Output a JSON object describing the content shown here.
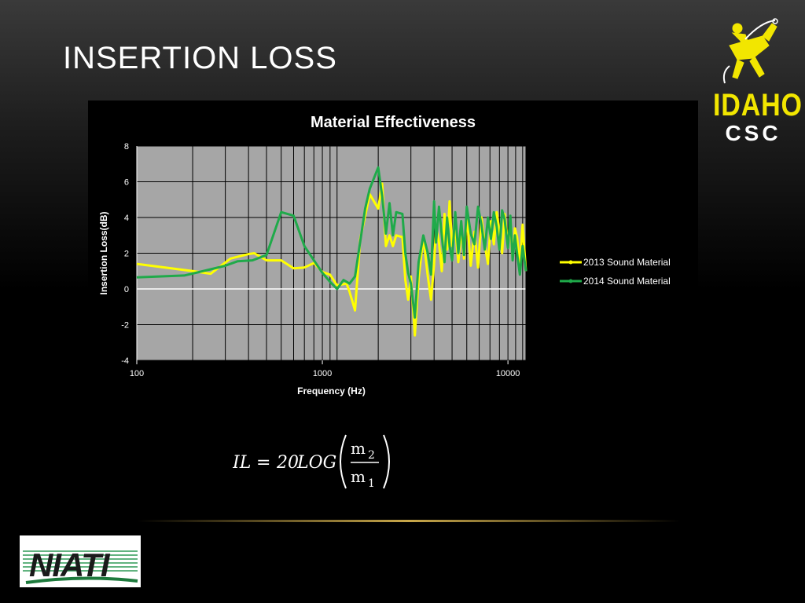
{
  "slide": {
    "title": "INSERTION LOSS"
  },
  "colors": {
    "series_2013": "#ffff00",
    "series_2014": "#1faa4a",
    "plot_bg": "#a6a6a6",
    "gold_rule": "#c9a84a"
  },
  "logos": {
    "idaho": {
      "word": "IDAHO",
      "sub": "CSC",
      "icon": "rodeo-rider-icon"
    },
    "niati": {
      "word": "NIATI"
    }
  },
  "formula": {
    "lhs": "IL",
    "equals": "=",
    "coef": "20",
    "func": "LOG",
    "num": "m",
    "num_sub": "2",
    "den": "m",
    "den_sub": "1"
  },
  "chart_data": {
    "type": "line",
    "title": "Material Effectiveness",
    "xlabel": "Frequency (Hz)",
    "ylabel": "Insertion Loss(dB)",
    "xscale": "log",
    "xlim": [
      100,
      12500
    ],
    "ylim": [
      -4,
      8
    ],
    "yticks": [
      "-4",
      "-2",
      "0",
      "2",
      "4",
      "6",
      "8"
    ],
    "xticks": [
      "100",
      "1000",
      "10000"
    ],
    "grid": true,
    "legend": "right",
    "series": [
      {
        "name": "2013 Sound Material",
        "x": [
          100,
          200,
          250,
          320,
          400,
          430,
          500,
          600,
          700,
          800,
          900,
          1000,
          1100,
          1200,
          1350,
          1400,
          1500,
          1600,
          1800,
          2000,
          2100,
          2200,
          2300,
          2400,
          2500,
          2700,
          2800,
          2900,
          3000,
          3150,
          3300,
          3500,
          3700,
          3850,
          4000,
          4100,
          4250,
          4400,
          4550,
          4700,
          4850,
          5000,
          5200,
          5400,
          5600,
          5800,
          6000,
          6300,
          6600,
          6900,
          7200,
          7500,
          7800,
          8100,
          8400,
          8700,
          9000,
          9300,
          9600,
          10000,
          10300,
          10600,
          10900,
          11200,
          11600,
          12000,
          12500
        ],
        "y": [
          1.4,
          1.0,
          0.85,
          1.7,
          1.95,
          2.0,
          1.6,
          1.6,
          1.15,
          1.2,
          1.45,
          0.95,
          0.8,
          0.2,
          0.3,
          -0.15,
          -1.2,
          2.8,
          5.3,
          4.5,
          5.9,
          2.4,
          3.0,
          2.4,
          3.0,
          2.9,
          0.5,
          -0.6,
          0.7,
          -2.6,
          0.6,
          2.9,
          0.7,
          -0.6,
          1.4,
          3.5,
          2.6,
          1.0,
          4.2,
          2.2,
          4.9,
          2.4,
          3.4,
          1.5,
          3.4,
          1.7,
          4.2,
          1.3,
          3.2,
          1.2,
          4.0,
          2.5,
          1.4,
          3.8,
          2.5,
          4.3,
          3.2,
          2.0,
          4.2,
          2.5,
          3.5,
          1.7,
          3.4,
          2.9,
          1.3,
          3.6,
          1.0
        ]
      },
      {
        "name": "2014 Sound Material",
        "x": [
          100,
          180,
          250,
          300,
          350,
          420,
          500,
          600,
          700,
          800,
          900,
          1000,
          1100,
          1200,
          1300,
          1400,
          1500,
          1700,
          1800,
          2000,
          2100,
          2200,
          2300,
          2400,
          2500,
          2700,
          2800,
          2900,
          3000,
          3150,
          3300,
          3500,
          3700,
          3850,
          4000,
          4100,
          4250,
          4400,
          4550,
          4700,
          4850,
          5000,
          5200,
          5400,
          5600,
          5800,
          6000,
          6300,
          6600,
          6900,
          7200,
          7500,
          7800,
          8100,
          8400,
          8700,
          9000,
          9300,
          9600,
          10000,
          10300,
          10600,
          10900,
          11200,
          11600,
          12000,
          12500
        ],
        "y": [
          0.65,
          0.75,
          1.1,
          1.3,
          1.55,
          1.6,
          1.9,
          4.3,
          4.1,
          2.4,
          1.6,
          0.9,
          0.4,
          0.0,
          0.5,
          0.3,
          0.7,
          4.5,
          5.6,
          6.8,
          5.2,
          3.1,
          4.8,
          3.0,
          4.3,
          4.2,
          2.0,
          0.9,
          0.3,
          -1.6,
          1.5,
          3.0,
          2.0,
          0.8,
          4.9,
          2.6,
          4.6,
          3.0,
          1.5,
          4.0,
          2.4,
          1.6,
          4.3,
          2.0,
          3.8,
          1.9,
          4.6,
          3.1,
          2.5,
          4.6,
          3.6,
          2.2,
          4.0,
          2.8,
          4.3,
          3.5,
          2.2,
          4.4,
          3.9,
          2.3,
          4.1,
          1.6,
          3.0,
          2.0,
          0.8,
          2.4,
          1.0
        ]
      }
    ]
  }
}
